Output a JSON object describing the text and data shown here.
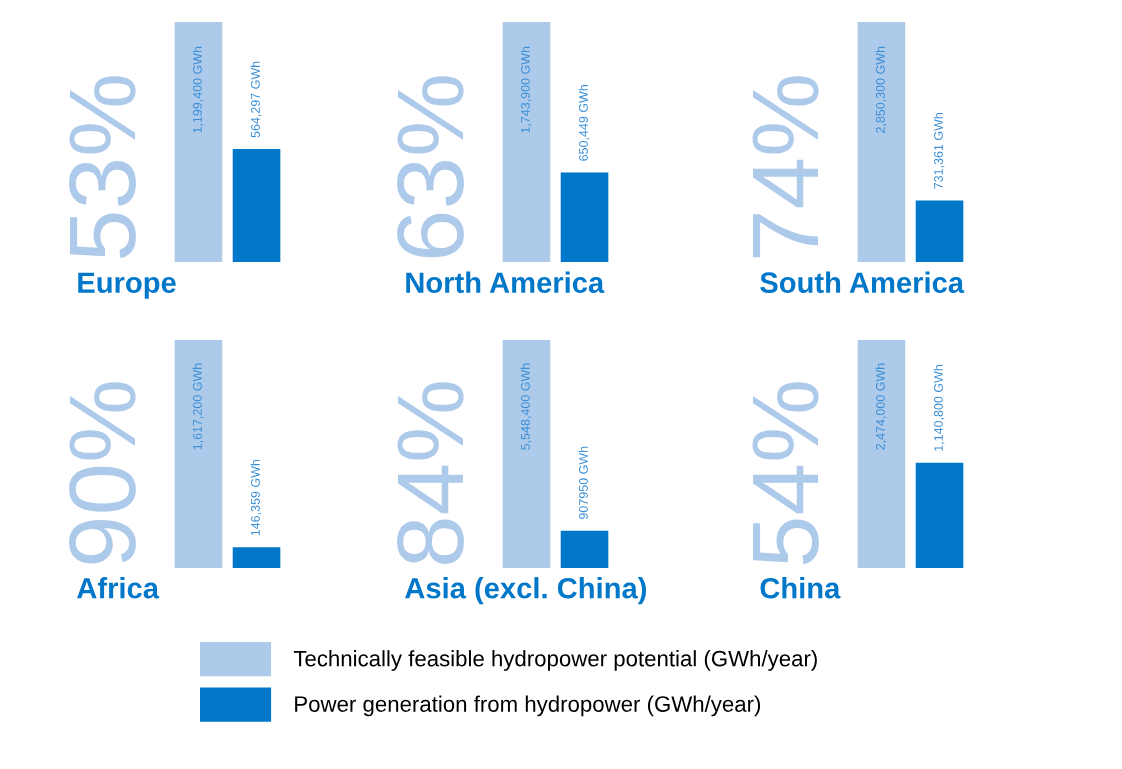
{
  "chart_data": [
    {
      "type": "bar",
      "title": "Europe",
      "categories": [
        null
      ],
      "annotations": [
        "53%"
      ],
      "legend": "bottom",
      "series": [
        {
          "name": "Technically feasible hydropower potential (GWh/year)",
          "color": "#aecaea",
          "values": [
            1199400
          ],
          "value_labels": [
            "1,199,400 GWh"
          ]
        },
        {
          "name": "Power generation from hydropower (GWh/year)",
          "color": "#0077c8",
          "values": [
            564297
          ],
          "value_labels": [
            "564,297 GWh"
          ]
        }
      ]
    },
    {
      "type": "bar",
      "title": "North America",
      "categories": [
        null
      ],
      "annotations": [
        "63%"
      ],
      "series": [
        {
          "color": "#aecaea",
          "values": [
            1743900
          ],
          "value_labels": [
            "1,743,900 GWh"
          ]
        },
        {
          "color": "#0077c8",
          "values": [
            650449
          ],
          "value_labels": [
            "650,449 GWh"
          ]
        }
      ]
    },
    {
      "type": "bar",
      "title": "South America",
      "categories": [
        null
      ],
      "annotations": [
        "74%"
      ],
      "series": [
        {
          "color": "#aecaea",
          "values": [
            2850300
          ],
          "value_labels": [
            "2,850,300 GWh"
          ]
        },
        {
          "color": "#0077c8",
          "values": [
            731361
          ],
          "value_labels": [
            "731,361 GWh"
          ]
        }
      ]
    },
    {
      "type": "bar",
      "title": "Africa",
      "categories": [
        null
      ],
      "annotations": [
        "90%"
      ],
      "series": [
        {
          "color": "#aecaea",
          "values": [
            1617200
          ],
          "value_labels": [
            "1,617,200 GWh"
          ]
        },
        {
          "color": "#0077c8",
          "values": [
            146359
          ],
          "value_labels": [
            "146,359 GWh"
          ]
        }
      ]
    },
    {
      "type": "bar",
      "title": "Asia (excl. China)",
      "categories": [
        null
      ],
      "annotations": [
        "84%"
      ],
      "series": [
        {
          "color": "#aecaea",
          "values": [
            5548400
          ],
          "value_labels": [
            "5,548,400 GWh"
          ]
        },
        {
          "color": "#0077c8",
          "values": [
            907950
          ],
          "value_labels": [
            "907950 GWh"
          ]
        }
      ]
    },
    {
      "type": "bar",
      "title": "China",
      "categories": [
        null
      ],
      "annotations": [
        "54%"
      ],
      "series": [
        {
          "color": "#aecaea",
          "values": [
            2474000
          ],
          "value_labels": [
            "2,474,000 GWh"
          ]
        },
        {
          "color": "#0077c8",
          "values": [
            1140800
          ],
          "value_labels": [
            "1,140,800 GWh"
          ]
        }
      ]
    }
  ]
}
